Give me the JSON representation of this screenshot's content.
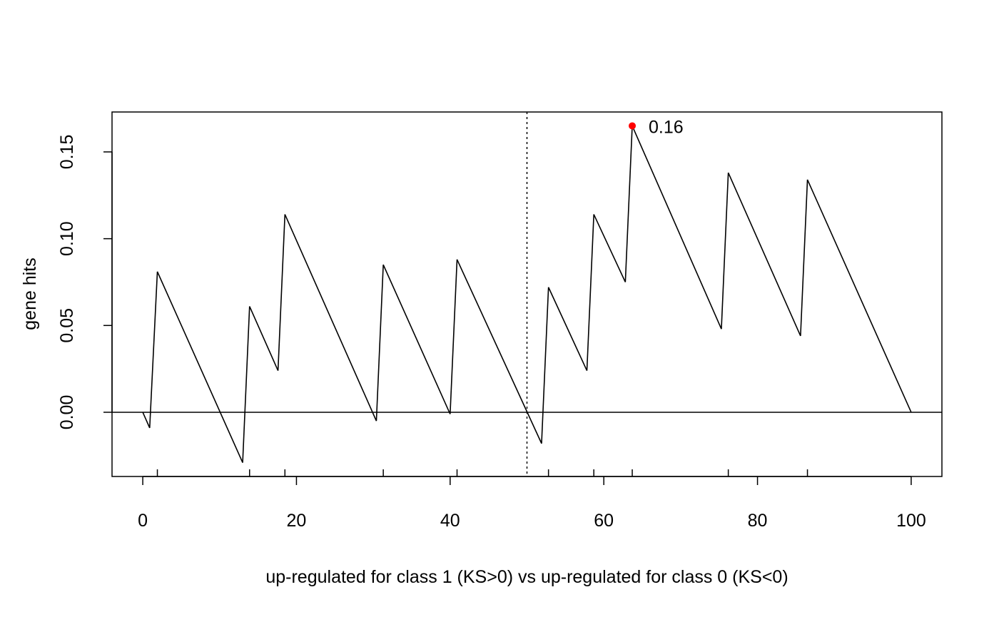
{
  "chart_data": {
    "type": "line",
    "title": "",
    "xlabel": "up-regulated for class 1 (KS>0) vs up-regulated for class 0 (KS<0)",
    "ylabel": "gene hits",
    "xlim": [
      -4,
      104
    ],
    "ylim": [
      -0.037,
      0.173
    ],
    "x_ticks": [
      0,
      20,
      40,
      60,
      80,
      100
    ],
    "x_tick_labels": [
      "0",
      "20",
      "40",
      "60",
      "80",
      "100"
    ],
    "y_ticks": [
      0.0,
      0.05,
      0.1,
      0.15
    ],
    "y_tick_labels": [
      "0.00",
      "0.05",
      "0.10",
      "0.15"
    ],
    "grid": false,
    "series": [
      {
        "color": "#000000",
        "x": [
          0,
          0.9,
          1.9,
          13.0,
          13.9,
          17.6,
          18.5,
          30.4,
          31.3,
          40.0,
          40.9,
          51.9,
          52.8,
          57.8,
          58.7,
          62.8,
          63.7,
          75.3,
          76.2,
          85.6,
          86.5,
          100
        ],
        "y": [
          0,
          -0.009,
          0.081,
          -0.029,
          0.061,
          0.024,
          0.114,
          -0.005,
          0.085,
          -0.001,
          0.088,
          -0.018,
          0.072,
          0.024,
          0.114,
          0.075,
          0.165,
          0.048,
          0.138,
          0.044,
          0.134,
          0
        ]
      }
    ],
    "hit_ticks": [
      1.9,
      13.9,
      18.5,
      31.3,
      40.9,
      52.8,
      58.7,
      63.7,
      76.2,
      86.5
    ],
    "hline_y": 0,
    "vline_x": 50,
    "peak": {
      "x": 63.7,
      "y": 0.165,
      "label": "0.16",
      "color": "#ff0000"
    }
  }
}
